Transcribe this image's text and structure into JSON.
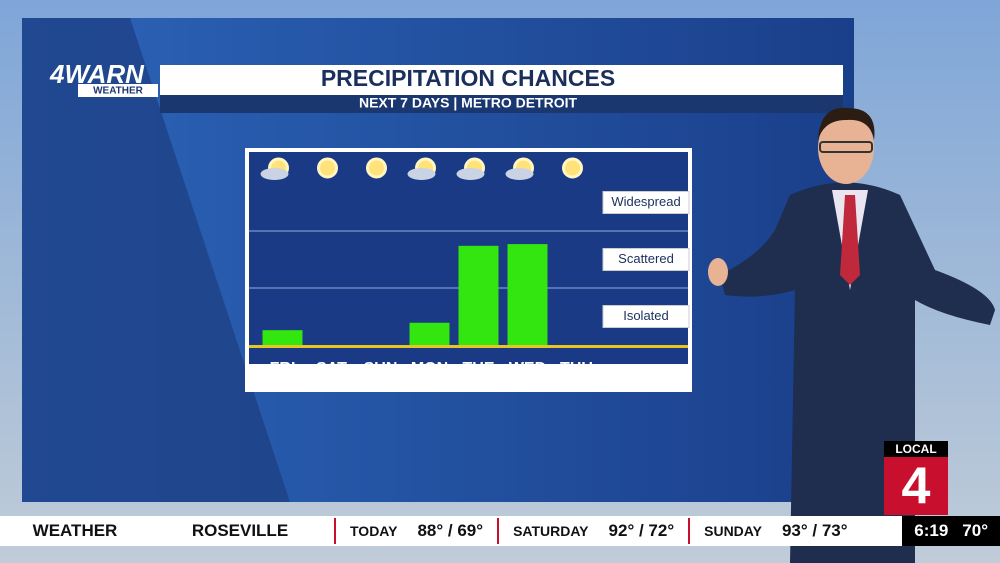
{
  "logo": {
    "brand": "4WARN",
    "sub": "WEATHER"
  },
  "chart_data": {
    "type": "bar",
    "title": "PRECIPITATION CHANCES",
    "subtitle": "NEXT 7 DAYS | METRO DETROIT",
    "categories": [
      "FRI",
      "SAT",
      "SUN",
      "MON",
      "TUE",
      "WED",
      "THU"
    ],
    "values": [
      0.26,
      0,
      0,
      0.39,
      1.74,
      1.77,
      0
    ],
    "color": "#33e60f",
    "ylim": [
      0,
      3
    ],
    "yticks": [
      {
        "value": 0.5,
        "label": "Isolated"
      },
      {
        "value": 1.5,
        "label": "Scattered"
      },
      {
        "value": 2.5,
        "label": "Widespread"
      }
    ],
    "grid": true
  },
  "station": {
    "local": "LOCAL",
    "number": "4"
  },
  "ticker": {
    "section": "WEATHER",
    "city": "ROSEVILLE",
    "forecast": [
      {
        "day": "TODAY",
        "temps": "88° / 69°"
      },
      {
        "day": "SATURDAY",
        "temps": "92° / 72°"
      },
      {
        "day": "SUNDAY",
        "temps": "93° / 73°"
      }
    ],
    "time": "6:19",
    "temp": "70°"
  }
}
